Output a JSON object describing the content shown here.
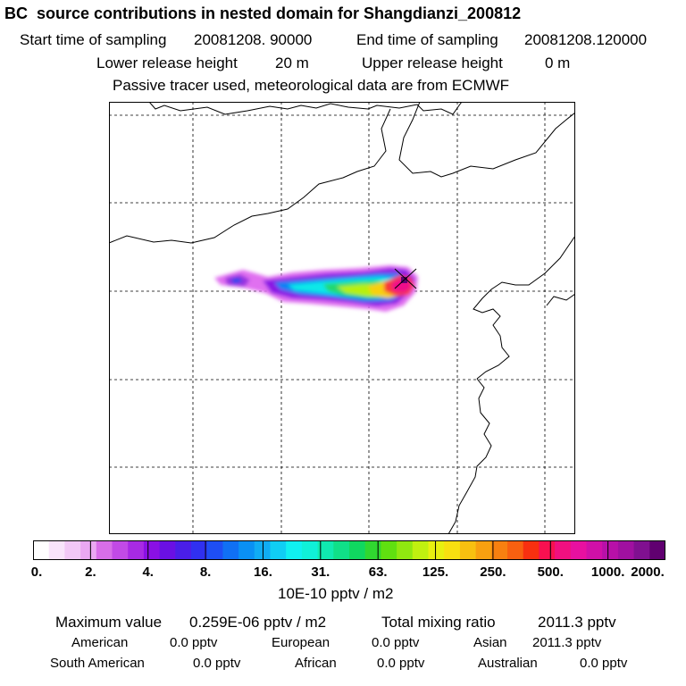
{
  "title": "BC  source contributions in nested domain for Shangdianzi_200812",
  "header": {
    "start_label": "Start time of sampling",
    "start_value": "20081208. 90000",
    "end_label": "End time of sampling",
    "end_value": "20081208.120000",
    "lower_label": "Lower release height",
    "lower_value": "20 m",
    "upper_label": "Upper release height",
    "upper_value": "0 m",
    "tracer_note": "Passive tracer used, meteorological data are from ECMWF"
  },
  "colorbar": {
    "ticks": [
      "0.",
      "2.",
      "4.",
      "8.",
      "16.",
      "31.",
      "63.",
      "125.",
      "250.",
      "500.",
      "1000.",
      "2000."
    ],
    "unit": "10E-10 pptv / m2",
    "colors": [
      "#ffffff",
      "#f9e4fb",
      "#f2c8f6",
      "#eaa8f2",
      "#d86ee8",
      "#c24ae6",
      "#a82ae4",
      "#8a10e4",
      "#6a10e4",
      "#4a1ee8",
      "#3030f0",
      "#1e4ef4",
      "#1070f4",
      "#0a90f4",
      "#10acf4",
      "#10cef4",
      "#10f0f0",
      "#10f0d8",
      "#10eab0",
      "#10e088",
      "#10d860",
      "#30d830",
      "#60e010",
      "#90e810",
      "#c0f010",
      "#e8f010",
      "#f8e010",
      "#f8c010",
      "#f8a010",
      "#f88010",
      "#f86010",
      "#f83010",
      "#f81050",
      "#f01080",
      "#e810a0",
      "#d010a8",
      "#b810a8",
      "#a010a0",
      "#801090",
      "#600070"
    ]
  },
  "stats": {
    "max_label": "Maximum value",
    "max_value": "0.259E-06 pptv / m2",
    "total_label": "Total mixing ratio",
    "total_value": "2011.3 pptv",
    "regions": [
      {
        "name": "American",
        "value": "0.0 pptv"
      },
      {
        "name": "European",
        "value": "0.0 pptv"
      },
      {
        "name": "Asian",
        "value": "2011.3 pptv"
      },
      {
        "name": "South American",
        "value": "0.0 pptv"
      },
      {
        "name": "African",
        "value": "0.0 pptv"
      },
      {
        "name": "Australian",
        "value": "0.0 pptv"
      }
    ]
  }
}
